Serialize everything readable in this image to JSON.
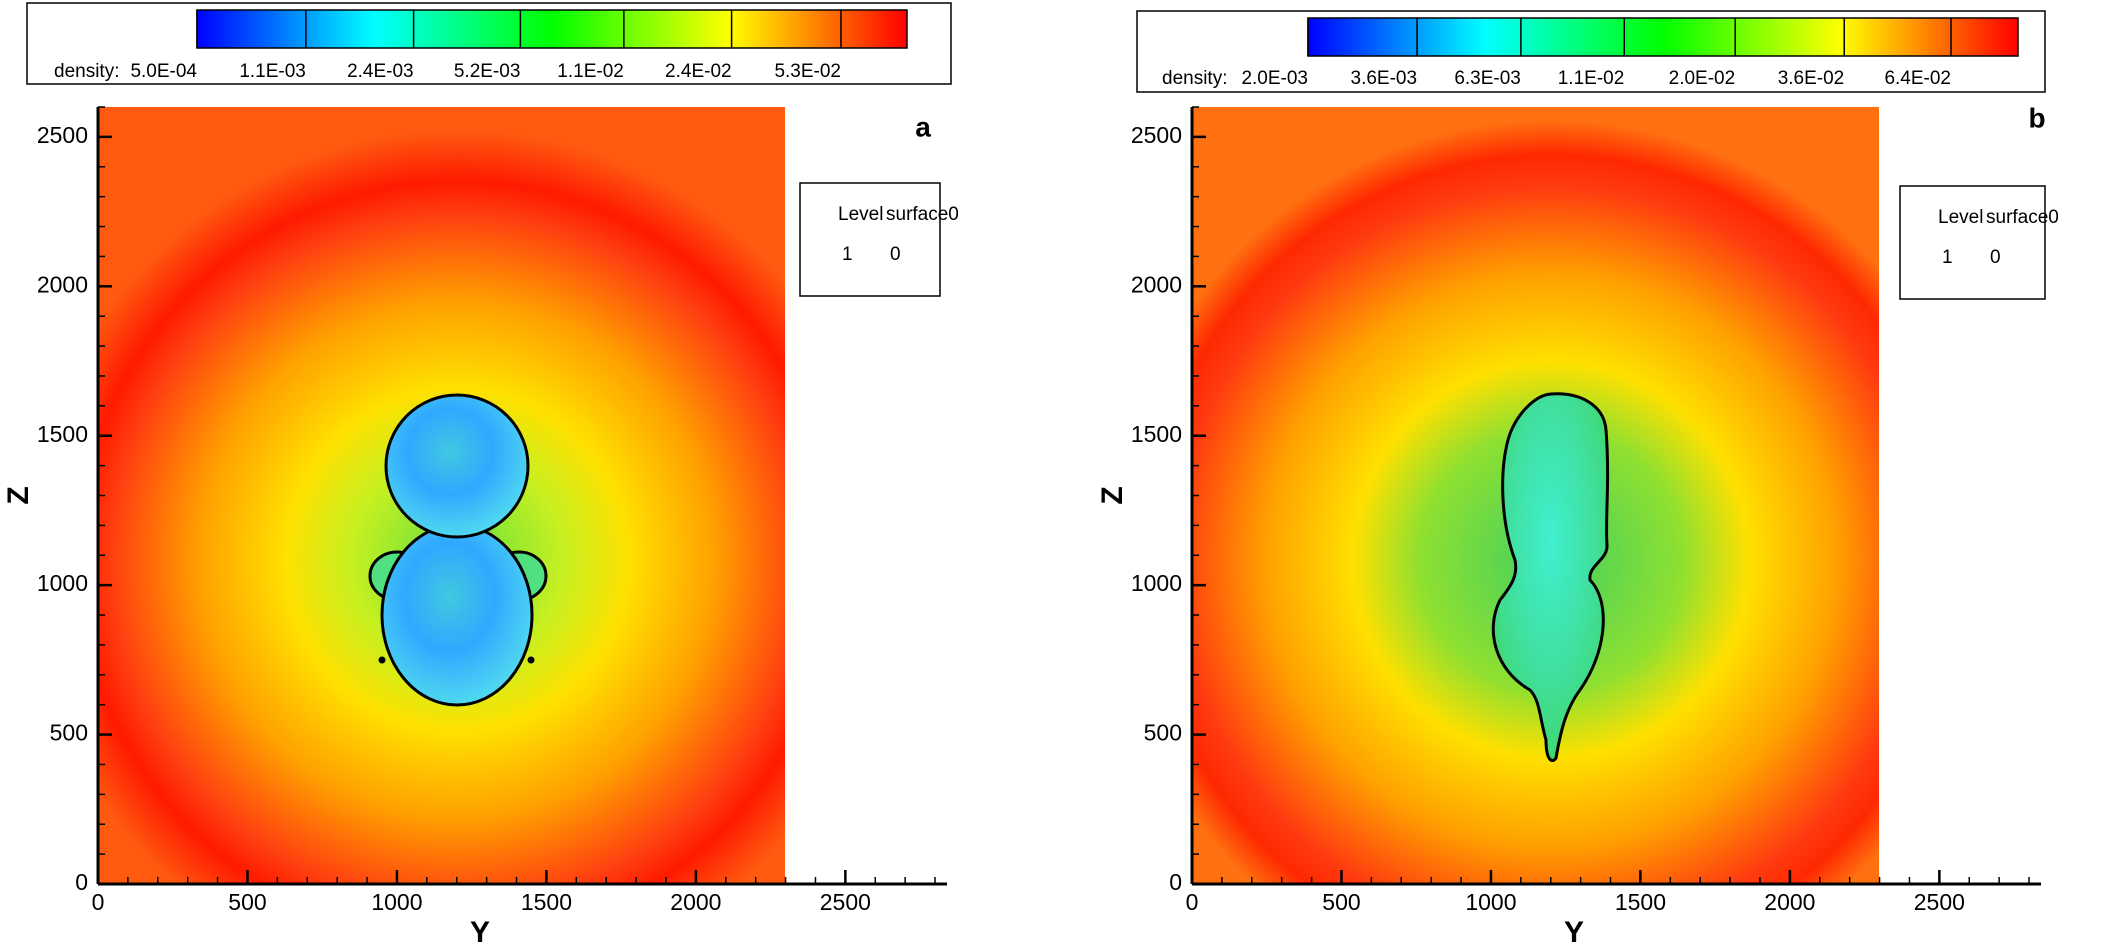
{
  "chart_data": [
    {
      "type": "contour",
      "panel_label": "a",
      "xlabel": "Y",
      "ylabel": "Z",
      "xlim": [
        0,
        2840
      ],
      "ylim": [
        0,
        2600
      ],
      "xticks": [
        0,
        500,
        1000,
        1500,
        2000,
        2500
      ],
      "yticks": [
        0,
        500,
        1000,
        1500,
        2000,
        2500
      ],
      "colorbar": {
        "label": "density:",
        "log": true,
        "colormap": [
          "#0000ff",
          "#00ffff",
          "#00ff00",
          "#ffff00",
          "#ff0000"
        ],
        "ticks": [
          {
            "value": 0.0005,
            "label": "5.0E-04"
          },
          {
            "value": 0.0011,
            "label": "1.1E-03"
          },
          {
            "value": 0.0024,
            "label": "2.4E-03"
          },
          {
            "value": 0.0052,
            "label": "5.2E-03"
          },
          {
            "value": 0.011,
            "label": "1.1E-02"
          },
          {
            "value": 0.024,
            "label": "2.4E-02"
          },
          {
            "value": 0.053,
            "label": "5.3E-02"
          }
        ]
      },
      "legend": {
        "header": [
          "Level",
          "surface0"
        ],
        "rows": [
          [
            1,
            0
          ]
        ]
      }
    },
    {
      "type": "contour",
      "panel_label": "b",
      "xlabel": "Y",
      "ylabel": "Z",
      "xlim": [
        0,
        2840
      ],
      "ylim": [
        0,
        2600
      ],
      "xticks": [
        0,
        500,
        1000,
        1500,
        2000,
        2500
      ],
      "yticks": [
        0,
        500,
        1000,
        1500,
        2000,
        2500
      ],
      "colorbar": {
        "label": "density:",
        "log": true,
        "colormap": [
          "#0000ff",
          "#00ffff",
          "#00ff00",
          "#ffff00",
          "#ff0000"
        ],
        "ticks": [
          {
            "value": 0.002,
            "label": "2.0E-03"
          },
          {
            "value": 0.0036,
            "label": "3.6E-03"
          },
          {
            "value": 0.0063,
            "label": "6.3E-03"
          },
          {
            "value": 0.011,
            "label": "1.1E-02"
          },
          {
            "value": 0.02,
            "label": "2.0E-02"
          },
          {
            "value": 0.036,
            "label": "3.6E-02"
          },
          {
            "value": 0.064,
            "label": "6.4E-02"
          }
        ]
      },
      "legend": {
        "header": [
          "Level",
          "surface0"
        ],
        "rows": [
          [
            1,
            0
          ]
        ]
      }
    }
  ]
}
